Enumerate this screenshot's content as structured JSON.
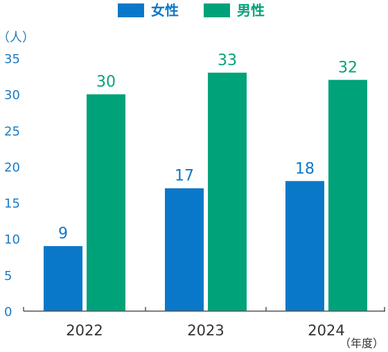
{
  "chart_data": {
    "type": "bar",
    "categories": [
      "2022",
      "2023",
      "2024"
    ],
    "series": [
      {
        "name": "女性",
        "color": "#0a78c8",
        "values": [
          9,
          17,
          18
        ]
      },
      {
        "name": "男性",
        "color": "#00a27a",
        "values": [
          30,
          33,
          32
        ]
      }
    ],
    "yticks": [
      0,
      5,
      10,
      15,
      20,
      25,
      30,
      35
    ],
    "ylim": [
      0,
      35
    ],
    "ylabel": "（人）",
    "xlabel": "（年度）",
    "legend_position": "top-center",
    "grid": false,
    "axis_color": "#555555"
  }
}
